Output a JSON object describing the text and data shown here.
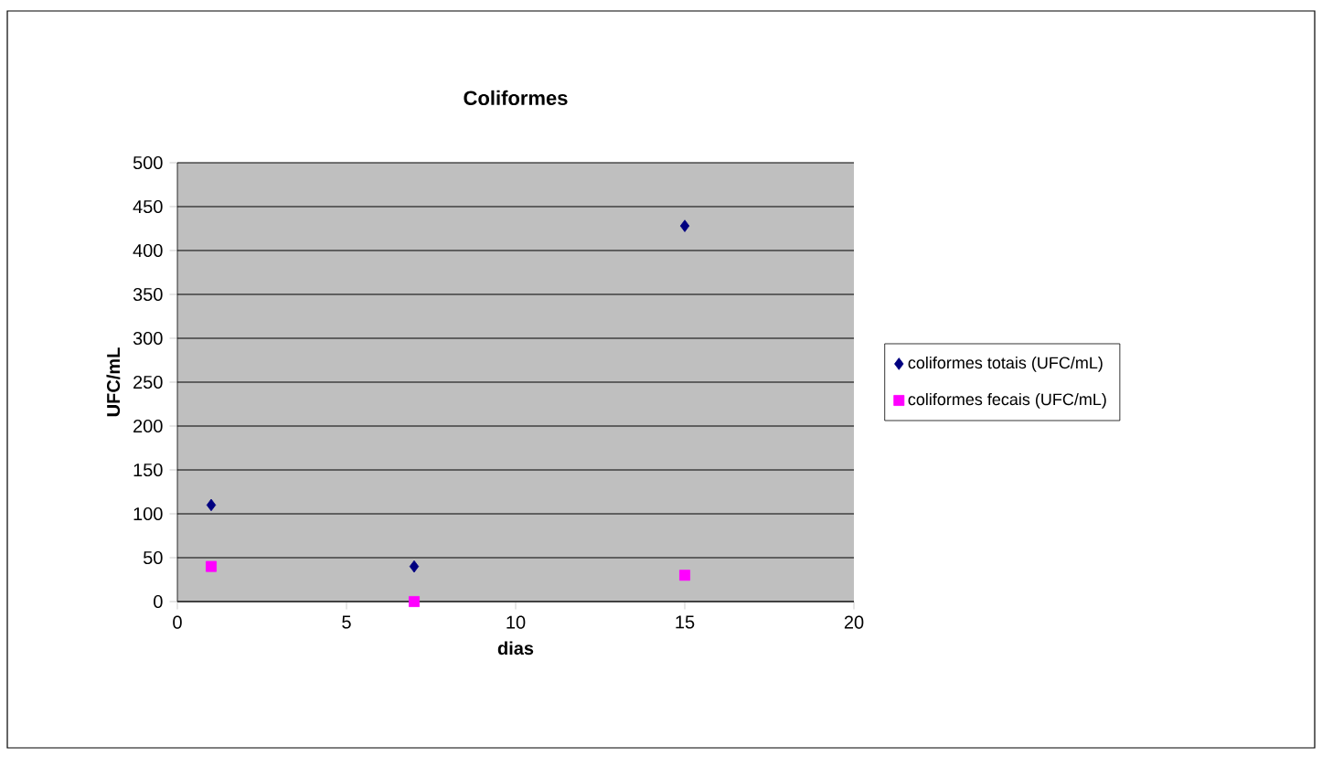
{
  "chart_data": {
    "type": "scatter",
    "title": "Coliformes",
    "xlabel": "dias",
    "ylabel": "UFC/mL",
    "xlim": [
      0,
      20
    ],
    "xticks": [
      0,
      5,
      10,
      15,
      20
    ],
    "ylim": [
      0,
      500
    ],
    "yticks": [
      0,
      50,
      100,
      150,
      200,
      250,
      300,
      350,
      400,
      450,
      500
    ],
    "grid": "y",
    "legend": "right",
    "series": [
      {
        "name": "coliformes totais (UFC/mL)",
        "color": "#000080",
        "marker": "diamond",
        "x": [
          1,
          7,
          15
        ],
        "values": [
          110,
          40,
          428
        ]
      },
      {
        "name": "coliformes fecais (UFC/mL)",
        "color": "#ff00ff",
        "marker": "square",
        "x": [
          1,
          7,
          15
        ],
        "values": [
          40,
          0,
          30
        ]
      }
    ]
  }
}
